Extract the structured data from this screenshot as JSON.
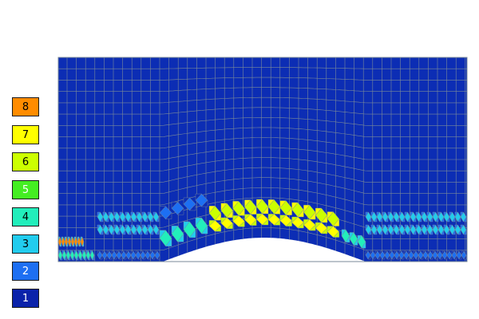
{
  "legend": {
    "entries": [
      {
        "label": "8",
        "color": "#ff8c00",
        "text_dark": true
      },
      {
        "label": "7",
        "color": "#ffff00",
        "text_dark": true
      },
      {
        "label": "6",
        "color": "#ccff00",
        "text_dark": true
      },
      {
        "label": "5",
        "color": "#44ee22",
        "text_dark": false
      },
      {
        "label": "4",
        "color": "#22eebb",
        "text_dark": true
      },
      {
        "label": "3",
        "color": "#22ccee",
        "text_dark": true
      },
      {
        "label": "2",
        "color": "#1d6ff2",
        "text_dark": false
      },
      {
        "label": "1",
        "color": "#0a22aa",
        "text_dark": false
      }
    ]
  },
  "mesh": {
    "background_color": "#0c2db4",
    "grid_line_color": "#7a8a99",
    "level_colors": {
      "1": "#0c2db4",
      "2": "#1d6ff2",
      "3": "#22ccee",
      "4": "#22eebb",
      "6": "#ccff00",
      "7": "#ffff00",
      "8": "#ff8c00"
    }
  }
}
